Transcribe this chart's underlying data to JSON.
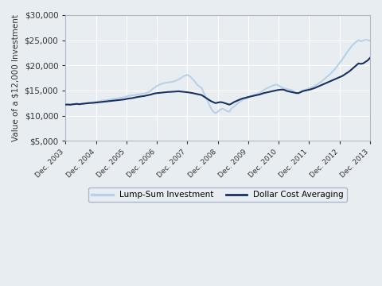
{
  "ylabel": "Value of a $12,000 Investment",
  "ylim": [
    5000,
    30000
  ],
  "yticks": [
    5000,
    10000,
    15000,
    20000,
    25000,
    30000
  ],
  "background_color": "#e8edf2",
  "plot_background": "#e8edf2",
  "grid_color": "#ffffff",
  "lump_sum_color": "#b8d0e8",
  "dca_color": "#1a3060",
  "lump_sum_label": "Lump-Sum Investment",
  "dca_label": "Dollar Cost Averaging",
  "lump_sum_lw": 1.5,
  "dca_lw": 1.5,
  "x_labels": [
    "Dec. 2003",
    "Dec. 2004",
    "Dec. 2005",
    "Dec. 2006",
    "Dec. 2007",
    "Dec. 2008",
    "Dec. 2009",
    "Dec. 2010",
    "Dec. 2011",
    "Dec. 2012",
    "Dec. 2013"
  ],
  "lump_sum_values": [
    12200,
    12220,
    12180,
    12250,
    12300,
    12350,
    12280,
    12350,
    12400,
    12500,
    12580,
    12620,
    12700,
    12750,
    12820,
    12900,
    13000,
    13050,
    13100,
    13200,
    13280,
    13350,
    13400,
    13500,
    13550,
    13650,
    13750,
    13900,
    14000,
    14050,
    14100,
    14200,
    14250,
    14350,
    14400,
    14500,
    14700,
    15000,
    15400,
    15700,
    16000,
    16200,
    16400,
    16500,
    16600,
    16650,
    16700,
    16800,
    17000,
    17200,
    17500,
    17800,
    18000,
    18100,
    17800,
    17300,
    16800,
    16200,
    15800,
    15500,
    14500,
    13500,
    12500,
    11500,
    10800,
    10500,
    10800,
    11200,
    11400,
    11200,
    10900,
    10800,
    11500,
    11800,
    12200,
    12600,
    12900,
    13200,
    13400,
    13500,
    13800,
    14000,
    14200,
    14300,
    14500,
    14800,
    15100,
    15400,
    15600,
    15800,
    16000,
    16200,
    16100,
    15800,
    15600,
    15400,
    15300,
    15200,
    15100,
    14800,
    14600,
    14400,
    14800,
    15000,
    15200,
    15300,
    15500,
    15700,
    15900,
    16200,
    16500,
    16800,
    17200,
    17600,
    18000,
    18400,
    18900,
    19400,
    20000,
    20600,
    21200,
    21900,
    22600,
    23200,
    23800,
    24300,
    24700,
    25000,
    24800,
    24900,
    25100,
    25000,
    24900
  ],
  "dca_values": [
    12200,
    12220,
    12180,
    12250,
    12300,
    12350,
    12280,
    12350,
    12400,
    12450,
    12500,
    12520,
    12550,
    12600,
    12650,
    12700,
    12750,
    12800,
    12850,
    12900,
    12950,
    13000,
    13050,
    13100,
    13150,
    13200,
    13280,
    13380,
    13450,
    13500,
    13600,
    13700,
    13780,
    13850,
    13900,
    14000,
    14100,
    14200,
    14350,
    14450,
    14500,
    14550,
    14600,
    14650,
    14700,
    14720,
    14750,
    14780,
    14800,
    14850,
    14800,
    14750,
    14700,
    14650,
    14580,
    14500,
    14400,
    14300,
    14200,
    14100,
    13800,
    13500,
    13200,
    12900,
    12700,
    12500,
    12600,
    12700,
    12650,
    12500,
    12350,
    12200,
    12400,
    12700,
    12900,
    13100,
    13300,
    13450,
    13550,
    13700,
    13800,
    13900,
    14000,
    14100,
    14200,
    14350,
    14500,
    14600,
    14700,
    14800,
    14900,
    15000,
    15100,
    15150,
    15200,
    15100,
    14900,
    14800,
    14700,
    14600,
    14500,
    14500,
    14700,
    14900,
    15000,
    15100,
    15200,
    15350,
    15500,
    15700,
    15900,
    16100,
    16300,
    16500,
    16700,
    16900,
    17100,
    17300,
    17500,
    17700,
    17900,
    18200,
    18500,
    18800,
    19200,
    19600,
    20000,
    20400,
    20300,
    20400,
    20700,
    21000,
    21500
  ]
}
